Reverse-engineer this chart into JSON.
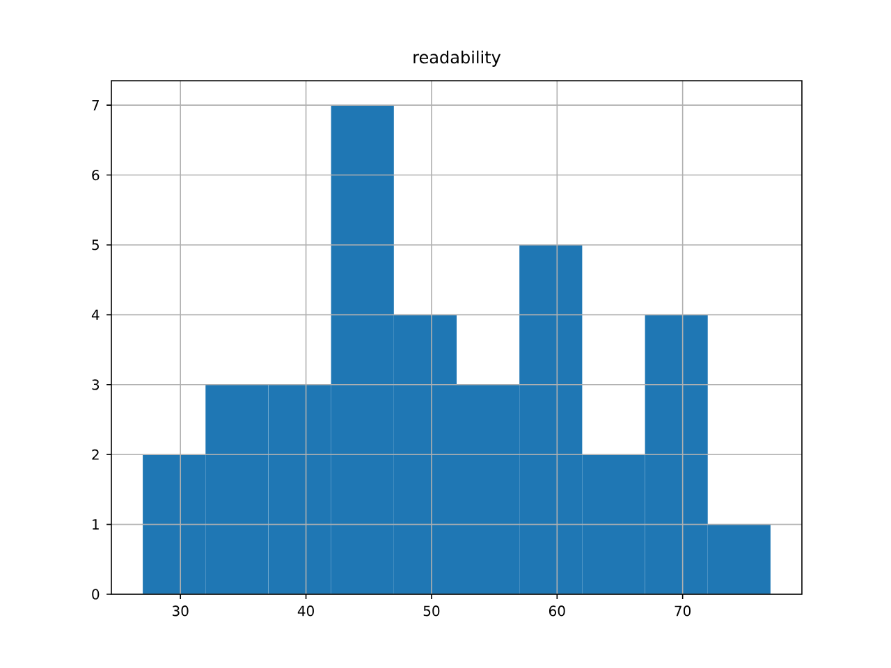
{
  "chart_data": {
    "type": "histogram",
    "title": "readability",
    "bins": [
      27,
      32,
      37,
      42,
      47,
      52,
      57,
      62,
      67,
      72,
      77
    ],
    "values": [
      2,
      3,
      3,
      7,
      4,
      3,
      5,
      2,
      4,
      1
    ],
    "color": "#1f77b4",
    "xlim": [
      24.5,
      79.5
    ],
    "ylim": [
      0,
      7.35
    ],
    "xticks": [
      30,
      40,
      50,
      60,
      70
    ],
    "yticks": [
      0,
      1,
      2,
      3,
      4,
      5,
      6,
      7
    ],
    "grid": true
  }
}
